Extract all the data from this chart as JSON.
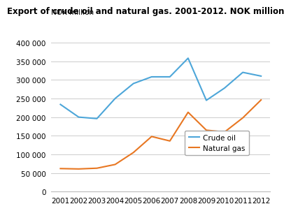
{
  "title": "Export of crude oil and natural gas. 2001-2012. NOK million",
  "ylabel": "NOK million",
  "years": [
    2001,
    2002,
    2003,
    2004,
    2005,
    2006,
    2007,
    2008,
    2009,
    2010,
    2011,
    2012
  ],
  "crude_oil": [
    234000,
    200000,
    196000,
    250000,
    290000,
    308000,
    308000,
    358000,
    245000,
    278000,
    320000,
    310000
  ],
  "natural_gas": [
    62000,
    61000,
    63000,
    73000,
    105000,
    148000,
    136000,
    213000,
    165000,
    160000,
    198000,
    246000
  ],
  "crude_oil_color": "#4da6d9",
  "natural_gas_color": "#e87722",
  "background_color": "#ffffff",
  "grid_color": "#cccccc",
  "ylim": [
    0,
    400000
  ],
  "yticks": [
    0,
    50000,
    100000,
    150000,
    200000,
    250000,
    300000,
    350000,
    400000
  ],
  "legend_labels": [
    "Crude oil",
    "Natural gas"
  ],
  "title_fontsize": 8.5,
  "axis_label_fontsize": 7.5,
  "tick_fontsize": 7.5
}
